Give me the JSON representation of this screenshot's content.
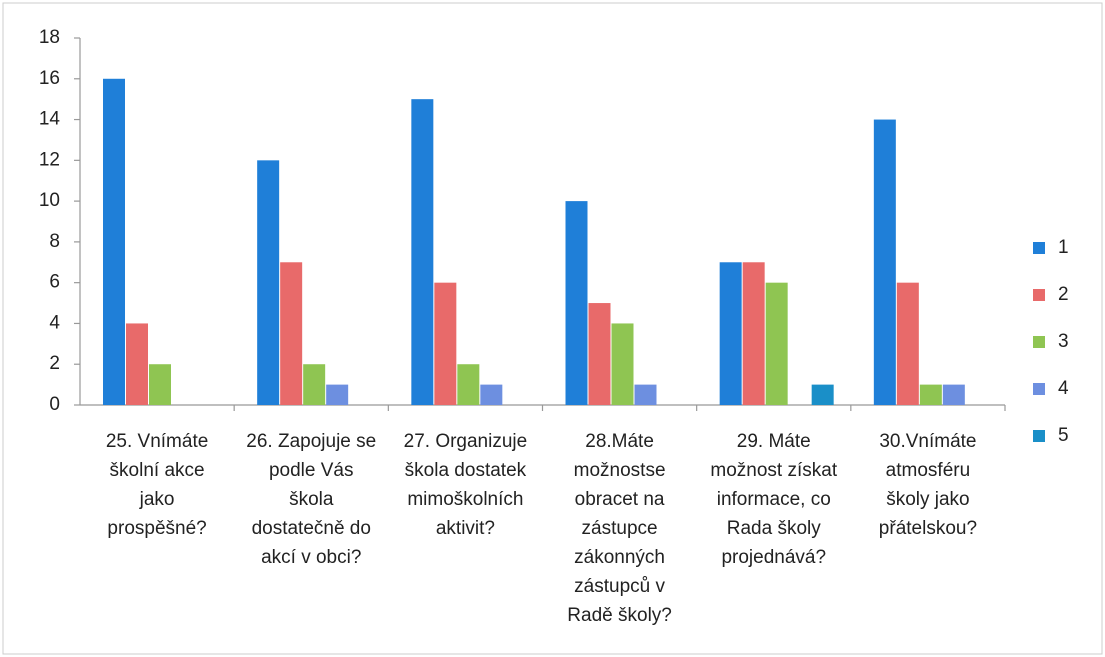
{
  "chart_data": {
    "type": "bar",
    "categories": [
      [
        "25. Vnímáte",
        "školní akce",
        "jako",
        "prospěšné?"
      ],
      [
        "26. Zapojuje se",
        "podle Vás",
        "škola",
        "dostatečně do",
        "akcí v obci?"
      ],
      [
        "27. Organizuje",
        "škola dostatek",
        "mimoškolních",
        "aktivit?"
      ],
      [
        "28.Máte",
        "možnostse",
        "obracet na",
        "zástupce",
        "zákonných",
        "zástupců v",
        "Radě školy?"
      ],
      [
        "29. Máte",
        "možnost získat",
        "informace, co",
        "Rada školy",
        "projednává?"
      ],
      [
        "30.Vnímáte",
        "atmosféru",
        "školy jako",
        "přátelskou?"
      ]
    ],
    "series": [
      {
        "name": "1",
        "color": "#1f7fd8",
        "values": [
          16,
          12,
          15,
          10,
          7,
          14
        ]
      },
      {
        "name": "2",
        "color": "#e86a6a",
        "values": [
          4,
          7,
          6,
          5,
          7,
          6
        ]
      },
      {
        "name": "3",
        "color": "#8fc552",
        "values": [
          2,
          2,
          2,
          4,
          6,
          1
        ]
      },
      {
        "name": "4",
        "color": "#6d8fe0",
        "values": [
          0,
          1,
          1,
          1,
          0,
          1
        ]
      },
      {
        "name": "5",
        "color": "#1a8fc8",
        "values": [
          0,
          0,
          0,
          0,
          1,
          0
        ]
      }
    ],
    "ylim": [
      0,
      18
    ],
    "yticks": [
      0,
      2,
      4,
      6,
      8,
      10,
      12,
      14,
      16,
      18
    ],
    "legend": "right"
  }
}
